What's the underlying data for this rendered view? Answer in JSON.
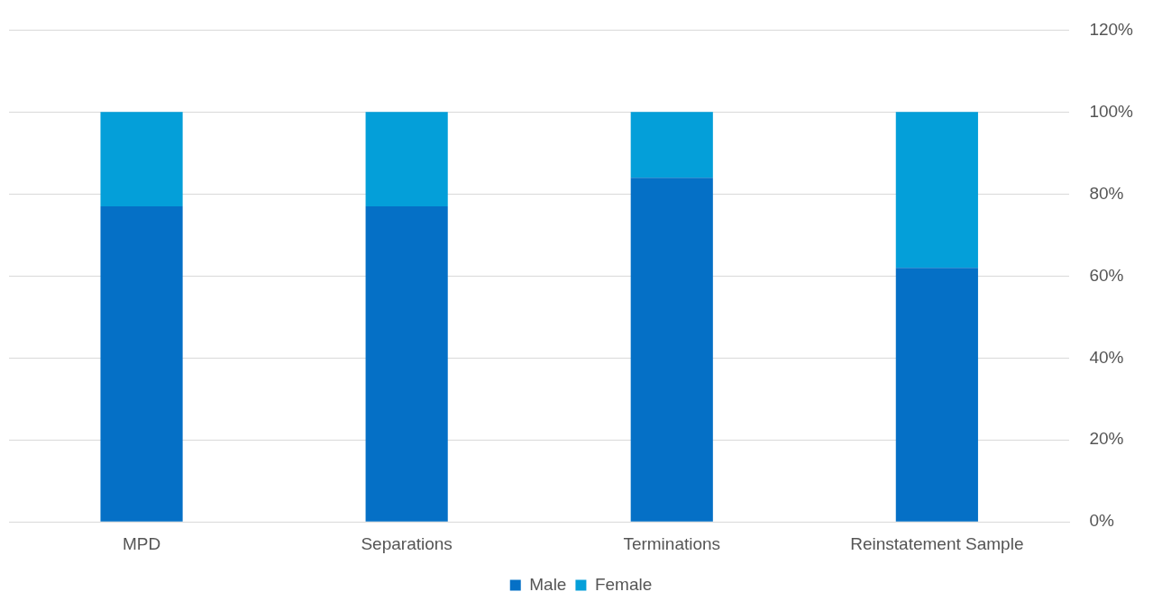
{
  "chart_data": {
    "type": "bar",
    "stacked": true,
    "categories": [
      "MPD",
      "Separations",
      "Terminations",
      "Reinstatement Sample"
    ],
    "series": [
      {
        "name": "Male",
        "color": "#0570c6",
        "values": [
          77,
          77,
          84,
          62
        ]
      },
      {
        "name": "Female",
        "color": "#049fd9",
        "values": [
          23,
          23,
          16,
          38
        ]
      }
    ],
    "ylim": [
      0,
      120
    ],
    "yticks": [
      {
        "value": 0,
        "label": "0%"
      },
      {
        "value": 20,
        "label": "20%"
      },
      {
        "value": 40,
        "label": "40%"
      },
      {
        "value": 60,
        "label": "60%"
      },
      {
        "value": 80,
        "label": "80%"
      },
      {
        "value": 100,
        "label": "100%"
      },
      {
        "value": 120,
        "label": "120%"
      }
    ],
    "grid": "y",
    "legend": "bottom"
  }
}
